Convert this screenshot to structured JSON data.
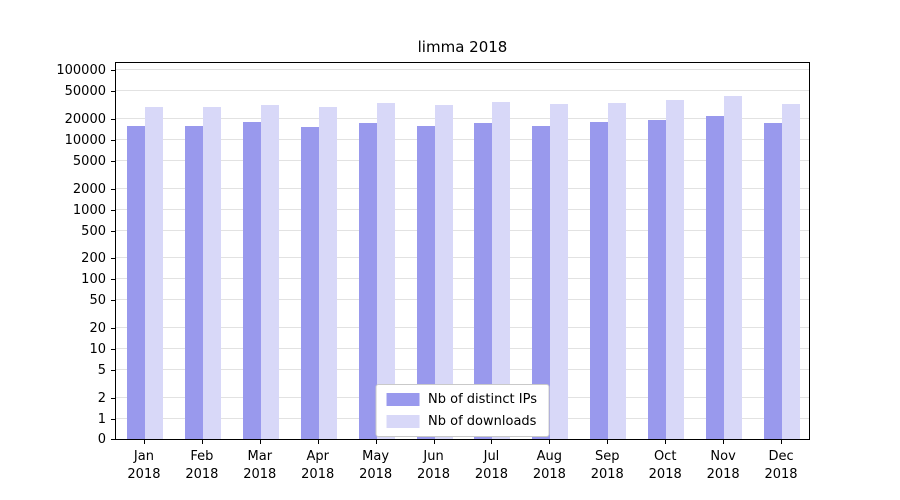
{
  "chart_data": {
    "type": "bar",
    "title": "limma 2018",
    "scale": "log-like",
    "categories": [
      "Jan",
      "Feb",
      "Mar",
      "Apr",
      "May",
      "Jun",
      "Jul",
      "Aug",
      "Sep",
      "Oct",
      "Nov",
      "Dec"
    ],
    "category_year": "2018",
    "series": [
      {
        "name": "Nb of distinct IPs",
        "color": "#9999ed",
        "values": [
          16000,
          16000,
          18000,
          15500,
          17500,
          16000,
          17500,
          15800,
          17800,
          19500,
          22000,
          17500
        ]
      },
      {
        "name": "Nb of downloads",
        "color": "#d8d8f8",
        "values": [
          30000,
          30000,
          32000,
          30000,
          34000,
          32000,
          34500,
          32500,
          34000,
          37000,
          43000,
          33000
        ]
      }
    ],
    "yticks": [
      100000,
      50000,
      20000,
      10000,
      5000,
      2000,
      1000,
      500,
      200,
      100,
      50,
      20,
      10,
      5,
      2,
      1,
      0
    ],
    "ylim_top": 130000,
    "grid": "horizontal",
    "legend_position": "bottom-center"
  }
}
